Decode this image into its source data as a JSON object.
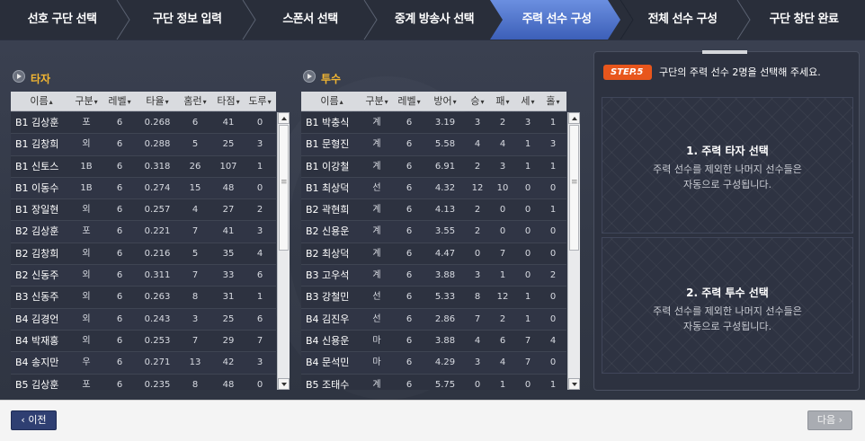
{
  "steps": [
    {
      "label": "선호 구단 선택",
      "active": false
    },
    {
      "label": "구단 정보 입력",
      "active": false
    },
    {
      "label": "스폰서 선택",
      "active": false
    },
    {
      "label": "중계 방송사 선택",
      "active": false
    },
    {
      "label": "주력 선수 구성",
      "active": true
    },
    {
      "label": "전체 선수 구성",
      "active": false
    },
    {
      "label": "구단 창단 완료",
      "active": false
    }
  ],
  "hitters": {
    "title": "타자",
    "columns": [
      "이름",
      "구분",
      "레벨",
      "타율",
      "홈런",
      "타점",
      "도루"
    ],
    "rows": [
      [
        "B1 김상훈",
        "포",
        "6",
        "0.268",
        "6",
        "41",
        "0"
      ],
      [
        "B1 김창희",
        "외",
        "6",
        "0.288",
        "5",
        "25",
        "3"
      ],
      [
        "B1 신토스",
        "1B",
        "6",
        "0.318",
        "26",
        "107",
        "1"
      ],
      [
        "B1 이동수",
        "1B",
        "6",
        "0.274",
        "15",
        "48",
        "0"
      ],
      [
        "B1 장일현",
        "외",
        "6",
        "0.257",
        "4",
        "27",
        "2"
      ],
      [
        "B2 김상훈",
        "포",
        "6",
        "0.221",
        "7",
        "41",
        "3"
      ],
      [
        "B2 김창희",
        "외",
        "6",
        "0.216",
        "5",
        "35",
        "4"
      ],
      [
        "B2 신동주",
        "외",
        "6",
        "0.311",
        "7",
        "33",
        "6"
      ],
      [
        "B3 신동주",
        "외",
        "6",
        "0.263",
        "8",
        "31",
        "1"
      ],
      [
        "B4 김경언",
        "외",
        "6",
        "0.243",
        "3",
        "25",
        "6"
      ],
      [
        "B4 박재홍",
        "외",
        "6",
        "0.253",
        "7",
        "29",
        "7"
      ],
      [
        "B4 송지만",
        "우",
        "6",
        "0.271",
        "13",
        "42",
        "3"
      ],
      [
        "B5 김상훈",
        "포",
        "6",
        "0.235",
        "8",
        "48",
        "0"
      ]
    ]
  },
  "pitchers": {
    "title": "투수",
    "columns": [
      "이름",
      "구분",
      "레벨",
      "방어",
      "승",
      "패",
      "세",
      "홀"
    ],
    "rows": [
      [
        "B1 박충식",
        "계",
        "6",
        "3.19",
        "3",
        "2",
        "3",
        "1"
      ],
      [
        "B1 문형진",
        "계",
        "6",
        "5.58",
        "4",
        "4",
        "1",
        "3"
      ],
      [
        "B1 이강철",
        "계",
        "6",
        "6.91",
        "2",
        "3",
        "1",
        "1"
      ],
      [
        "B1 최상덕",
        "선",
        "6",
        "4.32",
        "12",
        "10",
        "0",
        "0"
      ],
      [
        "B2 곽현희",
        "계",
        "6",
        "4.13",
        "2",
        "0",
        "0",
        "1"
      ],
      [
        "B2 신용운",
        "계",
        "6",
        "3.55",
        "2",
        "0",
        "0",
        "0"
      ],
      [
        "B2 최상덕",
        "계",
        "6",
        "4.47",
        "0",
        "7",
        "0",
        "0"
      ],
      [
        "B3 고우석",
        "계",
        "6",
        "3.88",
        "3",
        "1",
        "0",
        "2"
      ],
      [
        "B3 강철민",
        "선",
        "6",
        "5.33",
        "8",
        "12",
        "1",
        "0"
      ],
      [
        "B4 김진우",
        "선",
        "6",
        "2.86",
        "7",
        "2",
        "1",
        "0"
      ],
      [
        "B4 신용운",
        "마",
        "6",
        "3.88",
        "4",
        "6",
        "7",
        "4"
      ],
      [
        "B4 문석민",
        "마",
        "6",
        "4.29",
        "3",
        "4",
        "7",
        "0"
      ],
      [
        "B5 조태수",
        "계",
        "6",
        "5.75",
        "0",
        "1",
        "0",
        "1"
      ]
    ]
  },
  "panel": {
    "badge": "STEP.5",
    "instruction": "구단의 주력 선수 2명을 선택해 주세요.",
    "hitter_title": "1. 주력 타자 선택",
    "hitter_desc": [
      "주력 선수를 제외한 나머지 선수들은",
      "자동으로 구성됩니다."
    ],
    "pitcher_title": "2. 주력 투수 선택",
    "pitcher_desc": [
      "주력 선수를 제외한 나머지 선수들은",
      "자동으로 구성됩니다."
    ]
  },
  "footer": {
    "prev_label": "‹ 이전",
    "next_label": "다음 ›"
  },
  "colors": {
    "active_step": "#4a6fc4",
    "section_title": "#f2b632",
    "step_badge": "#e8561c"
  }
}
